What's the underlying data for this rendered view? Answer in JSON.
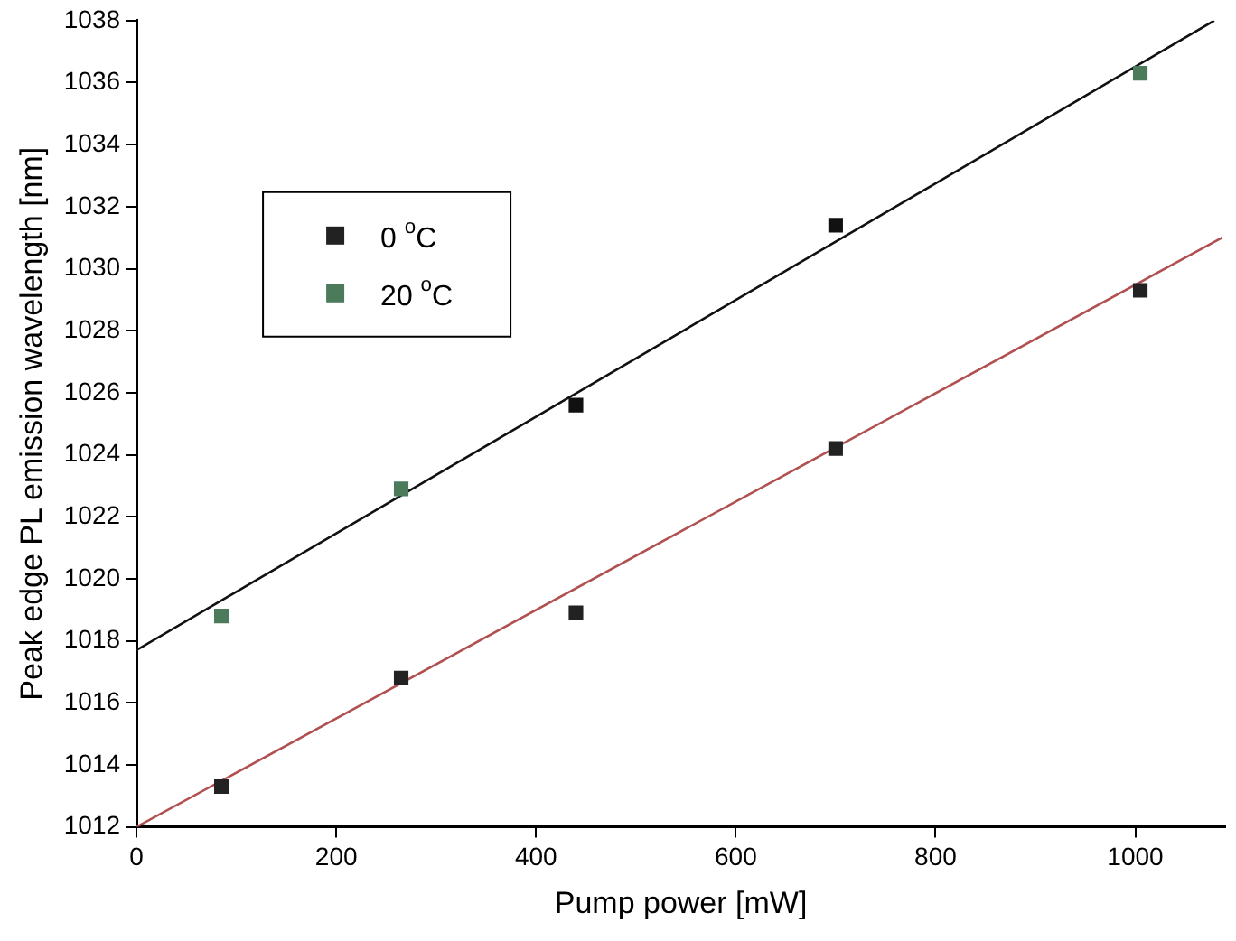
{
  "chart_data": {
    "type": "scatter",
    "xlabel": "Pump power [mW]",
    "ylabel": "Peak edge PL emission wavelength [nm]",
    "xlim": [
      0,
      1090
    ],
    "ylim": [
      1012,
      1038
    ],
    "xticks": [
      0,
      200,
      400,
      600,
      800,
      1000
    ],
    "yticks": [
      1012,
      1014,
      1016,
      1018,
      1020,
      1022,
      1024,
      1026,
      1028,
      1030,
      1032,
      1034,
      1036,
      1038
    ],
    "grid": false,
    "legend": "top left",
    "marker": "square",
    "series": [
      {
        "name": "0 $^{o}$C",
        "color": "#222222",
        "x": [
          85,
          265,
          440,
          700,
          1005
        ],
        "values": [
          1013.3,
          1016.8,
          1018.9,
          1024.2,
          1029.3
        ]
      },
      {
        "name": "20 $^{o}$C",
        "color": "#4b7b5b",
        "colors": [
          "#4b7b5b",
          "#4b7b5b",
          "#111111",
          "#111111",
          "#4b7b5b"
        ],
        "x": [
          85,
          265,
          440,
          700,
          1005
        ],
        "values": [
          1018.8,
          1022.9,
          1025.6,
          1031.4,
          1036.3
        ]
      },
      {
        "type": "line",
        "color": "#b05050",
        "marker": "none",
        "x": [
          0,
          1087
        ],
        "values": [
          1012,
          1031.0
        ]
      },
      {
        "type": "line",
        "color": "#111111",
        "marker": "none",
        "x": [
          0,
          1079
        ],
        "values": [
          1017.7,
          1038
        ]
      }
    ]
  }
}
